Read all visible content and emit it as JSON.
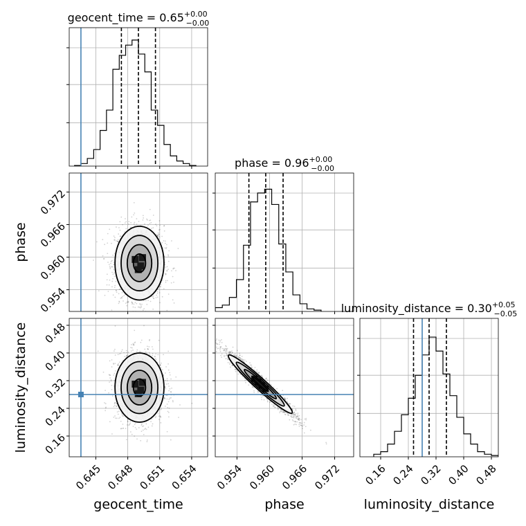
{
  "chart_data": {
    "type": "corner",
    "truth_color": "#4682b4",
    "contour_color": "#000000",
    "grid": true,
    "parameters": [
      {
        "name": "geocent_time",
        "label": "geocent_time",
        "title_value": "0.65",
        "title_plus": "+0.00",
        "title_minus": "−0.00",
        "range": [
          0.6425,
          0.6555
        ],
        "ticks": [
          0.645,
          0.648,
          0.651,
          0.654
        ],
        "tick_labels": [
          "0.645",
          "0.648",
          "0.651",
          "0.654"
        ],
        "truth": 0.6436,
        "quantiles": [
          0.6474,
          0.649,
          0.6506
        ]
      },
      {
        "name": "phase",
        "label": "phase",
        "title_value": "0.96",
        "title_plus": "+0.00",
        "title_minus": "−0.00",
        "range": [
          0.95,
          0.9755
        ],
        "ticks": [
          0.954,
          0.96,
          0.966,
          0.972
        ],
        "tick_labels": [
          "0.954",
          "0.960",
          "0.966",
          "0.972"
        ],
        "truth": null,
        "quantiles": [
          0.9562,
          0.9593,
          0.9625
        ]
      },
      {
        "name": "luminosity_distance",
        "label": "luminosity_distance",
        "title_value": "0.30",
        "title_plus": "+0.05",
        "title_minus": "−0.05",
        "range": [
          0.1,
          0.5
        ],
        "ticks": [
          0.16,
          0.24,
          0.32,
          0.4,
          0.48
        ],
        "tick_labels": [
          "0.16",
          "0.24",
          "0.32",
          "0.40",
          "0.48"
        ],
        "truth": 0.28,
        "quantiles": [
          0.255,
          0.3,
          0.35
        ]
      }
    ],
    "hist1d": [
      {
        "param": "geocent_time",
        "ymax": 1.0,
        "bins": [
          0.643,
          0.6436,
          0.6442,
          0.6448,
          0.6454,
          0.646,
          0.6466,
          0.6472,
          0.6478,
          0.6484,
          0.649,
          0.6496,
          0.6502,
          0.6508,
          0.6514,
          0.652,
          0.6526,
          0.6532,
          0.6538,
          0.6544
        ],
        "counts": [
          0.005,
          0.02,
          0.06,
          0.13,
          0.28,
          0.44,
          0.76,
          0.87,
          0.95,
          0.99,
          0.88,
          0.74,
          0.44,
          0.32,
          0.17,
          0.08,
          0.04,
          0.02,
          0.005
        ]
      },
      {
        "param": "phase",
        "ymax": 1.0,
        "bins": [
          0.95,
          0.9513,
          0.9526,
          0.9539,
          0.9552,
          0.9565,
          0.9578,
          0.9591,
          0.9604,
          0.9617,
          0.963,
          0.9643,
          0.9656,
          0.9669,
          0.9682,
          0.9695
        ],
        "counts": [
          0.03,
          0.05,
          0.11,
          0.25,
          0.52,
          0.86,
          0.93,
          0.96,
          0.84,
          0.53,
          0.31,
          0.13,
          0.06,
          0.02,
          0.01
        ]
      },
      {
        "param": "luminosity_distance",
        "ymax": 1.0,
        "bins": [
          0.14,
          0.16,
          0.18,
          0.2,
          0.22,
          0.24,
          0.26,
          0.28,
          0.3,
          0.32,
          0.34,
          0.36,
          0.38,
          0.4,
          0.42,
          0.44,
          0.46,
          0.48,
          0.5
        ],
        "counts": [
          0.02,
          0.04,
          0.1,
          0.2,
          0.33,
          0.46,
          0.64,
          0.8,
          0.94,
          0.83,
          0.65,
          0.48,
          0.31,
          0.18,
          0.1,
          0.04,
          0.02,
          0.01
        ]
      }
    ],
    "hist2d": [
      {
        "x": "geocent_time",
        "y": "phase",
        "center": [
          0.6491,
          0.9589
        ],
        "sigma": [
          0.00115,
          0.0034
        ],
        "rho": 0.0
      },
      {
        "x": "geocent_time",
        "y": "luminosity_distance",
        "center": [
          0.6491,
          0.3
        ],
        "sigma": [
          0.00115,
          0.05
        ],
        "rho": 0.0
      },
      {
        "x": "phase",
        "y": "luminosity_distance",
        "center": [
          0.9583,
          0.31
        ],
        "sigma": [
          0.0034,
          0.05
        ],
        "rho": -0.97
      }
    ]
  }
}
